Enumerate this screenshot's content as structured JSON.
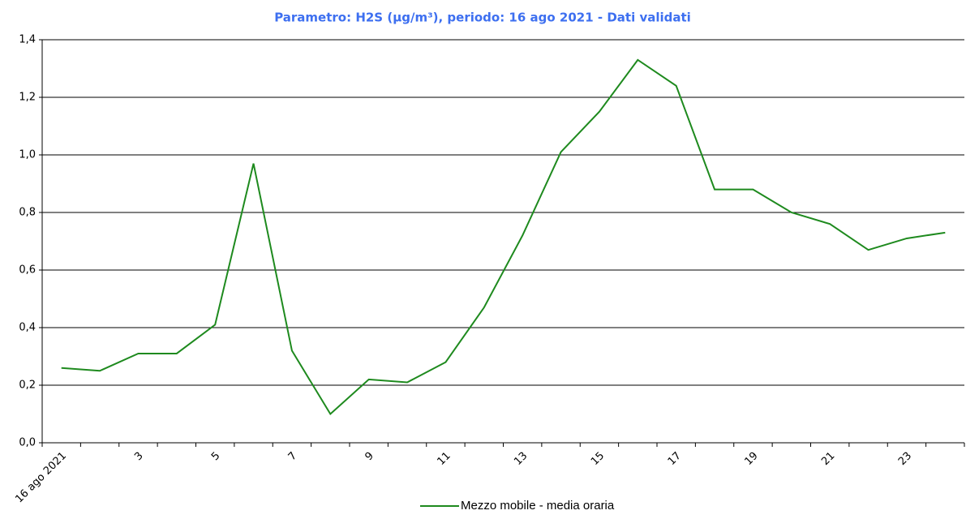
{
  "chart_data": {
    "type": "line",
    "title": "Parametro: H2S (µg/m³), periodo: 16 ago 2021 - Dati validati",
    "categories": [
      "16 ago 2021",
      null,
      "3",
      null,
      "5",
      null,
      "7",
      null,
      "9",
      null,
      "11",
      null,
      "13",
      null,
      "15",
      null,
      "17",
      null,
      "19",
      null,
      "21",
      null,
      "23",
      null
    ],
    "series": [
      {
        "name": "Mezzo mobile - media oraria",
        "color": "#1e8a1e",
        "values": [
          0.26,
          0.25,
          0.31,
          0.31,
          0.41,
          0.97,
          0.32,
          0.1,
          0.22,
          0.21,
          0.28,
          0.47,
          0.72,
          1.01,
          1.15,
          1.33,
          1.24,
          0.88,
          0.88,
          0.8,
          0.76,
          0.67,
          0.71,
          0.73
        ]
      }
    ],
    "ylim": [
      0,
      1.4
    ],
    "yticks": [
      {
        "value": 0,
        "label": "0,0"
      },
      {
        "value": 0.2,
        "label": "0,2"
      },
      {
        "value": 0.4,
        "label": "0,4"
      },
      {
        "value": 0.6,
        "label": "0,6"
      },
      {
        "value": 0.8,
        "label": "0,8"
      },
      {
        "value": 1.0,
        "label": "1,0"
      },
      {
        "value": 1.2,
        "label": "1,2"
      },
      {
        "value": 1.4,
        "label": "1,4"
      }
    ],
    "grid": true,
    "legend": "bottom"
  }
}
